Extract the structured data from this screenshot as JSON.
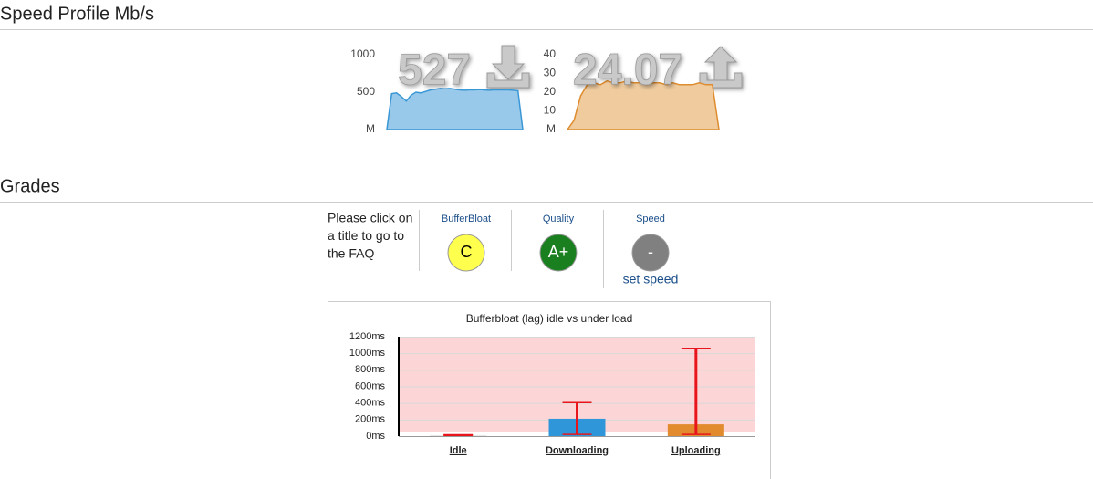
{
  "speed_profile": {
    "title": "Speed Profile Mb/s",
    "download": {
      "type": "area",
      "reading": "527",
      "color": "#3a97d6",
      "fill": "#98c9eb",
      "ylim": [
        0,
        1000
      ],
      "yticks": [
        {
          "value": 0,
          "label": "M"
        },
        500,
        1000
      ],
      "values": [
        0,
        480,
        490,
        440,
        380,
        460,
        500,
        490,
        510,
        530,
        540,
        550,
        545,
        550,
        540,
        530,
        525,
        530,
        530,
        535,
        530,
        525,
        530,
        530,
        530,
        530,
        525,
        520,
        0
      ]
    },
    "upload": {
      "type": "area",
      "reading": "24.07",
      "color": "#de8c2f",
      "fill": "#efcb9e",
      "ylim": [
        0,
        40
      ],
      "yticks": [
        {
          "value": 0,
          "label": "M"
        },
        10,
        20,
        30,
        40
      ],
      "values": [
        0,
        5,
        18,
        24,
        25,
        24,
        26,
        25,
        25,
        26,
        25,
        25,
        24,
        25,
        25,
        24,
        25,
        24,
        24,
        24,
        25,
        24,
        24,
        0
      ]
    }
  },
  "grades": {
    "title": "Grades",
    "instructions": [
      "Please click on",
      "a title to go to",
      "the FAQ"
    ],
    "items": [
      {
        "label": "BufferBloat",
        "grade": "C",
        "color": "#ffff4d",
        "text_color": "#000000"
      },
      {
        "label": "Quality",
        "grade": "A+",
        "color": "#1a7f1f",
        "text_color": "#ffffff"
      },
      {
        "label": "Speed",
        "grade": "-",
        "color": "#808080",
        "text_color": "#ffffff",
        "link": "set speed"
      }
    ]
  },
  "chart_data": {
    "type": "bar",
    "title": "Bufferbloat (lag) idle vs under load",
    "categories": [
      "Idle",
      "Downloading",
      "Uploading"
    ],
    "values": [
      12,
      210,
      142
    ],
    "error_low": [
      8,
      20,
      20
    ],
    "error_high": [
      16,
      405,
      1060
    ],
    "colors": [
      "#e8e8e8",
      "#2f96da",
      "#e18b2e"
    ],
    "error_color": "#e8161c",
    "band": {
      "from": 50,
      "to": 1200,
      "color": "#fcd6d6"
    },
    "ylim": [
      0,
      1200
    ],
    "yticks": [
      {
        "value": 0,
        "label": "0ms"
      },
      {
        "value": 200,
        "label": "200ms"
      },
      {
        "value": 400,
        "label": "400ms"
      },
      {
        "value": 600,
        "label": "600ms"
      },
      {
        "value": 800,
        "label": "800ms"
      },
      {
        "value": 1000,
        "label": "1000ms"
      },
      {
        "value": 1200,
        "label": "1200ms"
      }
    ],
    "grid": true
  }
}
